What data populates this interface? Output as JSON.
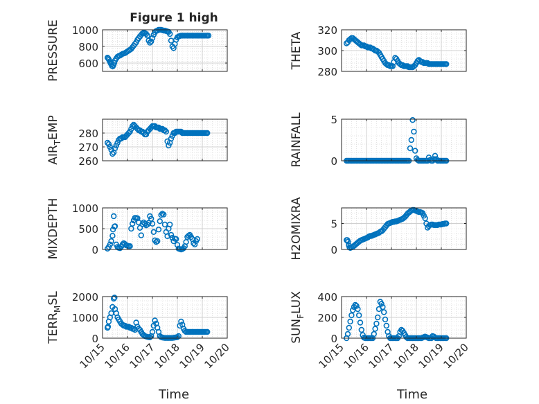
{
  "figure": {
    "title": "Figure 1 high",
    "xlabel": "Time",
    "x_ticks": [
      "10/15",
      "10/16",
      "10/17",
      "10/18",
      "10/19",
      "10/20"
    ],
    "marker_color": "#0072BD"
  },
  "chart_data": [
    {
      "type": "scatter",
      "ylabel": "PRESSURE",
      "ylim": [
        500,
        1000
      ],
      "yticks": [
        600,
        800,
        1000
      ],
      "xlim": [
        "10/15",
        "10/20"
      ],
      "grid": true,
      "x": [
        0.2,
        0.23,
        0.26,
        0.29,
        0.32,
        0.35,
        0.38,
        0.41,
        0.44,
        0.47,
        0.5,
        0.55,
        0.6,
        0.65,
        0.7,
        0.75,
        0.8,
        0.85,
        0.9,
        0.95,
        1.0,
        1.05,
        1.1,
        1.15,
        1.2,
        1.25,
        1.3,
        1.35,
        1.4,
        1.45,
        1.5,
        1.55,
        1.6,
        1.65,
        1.7,
        1.75,
        1.8,
        1.85,
        1.9,
        1.95,
        2.0,
        2.05,
        2.1,
        2.15,
        2.2,
        2.25,
        2.3,
        2.35,
        2.4,
        2.45,
        2.5,
        2.55,
        2.6,
        2.65,
        2.7,
        2.75,
        2.8,
        2.85,
        2.9,
        2.95,
        3.0,
        3.05,
        3.1,
        3.15,
        3.2,
        3.25,
        3.3,
        3.35,
        3.4,
        3.45,
        3.5,
        3.55,
        3.6,
        3.65,
        3.7,
        3.75,
        3.8,
        3.85,
        3.9,
        3.95,
        4.0,
        4.05,
        4.1,
        4.15,
        4.2,
        4.25
      ],
      "y": [
        665,
        655,
        640,
        620,
        600,
        585,
        565,
        560,
        575,
        600,
        630,
        655,
        675,
        685,
        690,
        700,
        710,
        715,
        720,
        730,
        740,
        750,
        760,
        770,
        790,
        810,
        830,
        850,
        880,
        900,
        920,
        940,
        955,
        965,
        960,
        950,
        930,
        870,
        845,
        860,
        900,
        940,
        970,
        985,
        990,
        1000,
        1000,
        1000,
        995,
        990,
        990,
        985,
        980,
        975,
        950,
        870,
        800,
        780,
        830,
        880,
        910,
        920,
        925,
        930,
        930,
        930,
        930,
        930,
        930,
        930,
        930,
        930,
        930,
        930,
        930,
        930,
        930,
        930,
        930,
        930,
        930,
        930,
        930,
        930,
        930,
        930
      ]
    },
    {
      "type": "scatter",
      "ylabel": "THETA",
      "ylim": [
        280,
        320
      ],
      "yticks": [
        280,
        300,
        320
      ],
      "xlim": [
        "10/15",
        "10/20"
      ],
      "grid": true,
      "x": [
        0.2,
        0.25,
        0.3,
        0.35,
        0.4,
        0.45,
        0.5,
        0.55,
        0.6,
        0.65,
        0.7,
        0.75,
        0.8,
        0.85,
        0.9,
        0.95,
        1.0,
        1.05,
        1.1,
        1.15,
        1.2,
        1.25,
        1.3,
        1.35,
        1.4,
        1.45,
        1.5,
        1.55,
        1.6,
        1.65,
        1.7,
        1.75,
        1.8,
        1.85,
        1.9,
        1.95,
        2.0,
        2.05,
        2.1,
        2.15,
        2.2,
        2.25,
        2.3,
        2.35,
        2.4,
        2.45,
        2.5,
        2.55,
        2.6,
        2.65,
        2.7,
        2.75,
        2.8,
        2.85,
        2.9,
        2.95,
        3.0,
        3.05,
        3.1,
        3.15,
        3.2,
        3.25,
        3.3,
        3.35,
        3.4,
        3.45,
        3.5,
        3.55,
        3.6,
        3.65,
        3.7,
        3.75,
        3.8,
        3.85,
        3.9,
        3.95,
        4.0,
        4.05,
        4.1,
        4.15,
        4.2
      ],
      "y": [
        307,
        308,
        310,
        311,
        312,
        312,
        311,
        310,
        309,
        308,
        307,
        306,
        305,
        305,
        305,
        304,
        304,
        303,
        303,
        303,
        302,
        302,
        301,
        300,
        300,
        299,
        298,
        296,
        294,
        292,
        290,
        288,
        287,
        286,
        286,
        285,
        285,
        285,
        289,
        293,
        292,
        290,
        288,
        287,
        286,
        286,
        285,
        285,
        285,
        285,
        284,
        284,
        284,
        284,
        285,
        286,
        288,
        290,
        291,
        290,
        289,
        289,
        288,
        288,
        288,
        288,
        287,
        287,
        287,
        287,
        287,
        287,
        287,
        287,
        287,
        287,
        287,
        287,
        287,
        287,
        287
      ]
    },
    {
      "type": "scatter",
      "ylabel": "AIR_TEMP",
      "ylim": [
        260,
        290
      ],
      "yticks": [
        260,
        270,
        280
      ],
      "xlim": [
        "10/15",
        "10/20"
      ],
      "grid": true,
      "x": [
        0.2,
        0.25,
        0.3,
        0.35,
        0.4,
        0.45,
        0.5,
        0.55,
        0.6,
        0.65,
        0.7,
        0.75,
        0.8,
        0.85,
        0.9,
        0.95,
        1.0,
        1.05,
        1.1,
        1.15,
        1.2,
        1.25,
        1.3,
        1.35,
        1.4,
        1.45,
        1.5,
        1.55,
        1.6,
        1.65,
        1.7,
        1.75,
        1.8,
        1.85,
        1.9,
        1.95,
        2.0,
        2.05,
        2.1,
        2.15,
        2.2,
        2.25,
        2.3,
        2.35,
        2.4,
        2.45,
        2.5,
        2.55,
        2.6,
        2.65,
        2.7,
        2.75,
        2.8,
        2.85,
        2.9,
        2.95,
        3.0,
        3.05,
        3.1,
        3.15,
        3.2,
        3.25,
        3.3,
        3.35,
        3.4,
        3.45,
        3.5,
        3.55,
        3.6,
        3.65,
        3.7,
        3.75,
        3.8,
        3.85,
        3.9,
        3.95,
        4.0,
        4.05,
        4.1,
        4.15,
        4.2
      ],
      "y": [
        273,
        272,
        270,
        268,
        265,
        266,
        269,
        271,
        273,
        275,
        276,
        276,
        277,
        277,
        277,
        278,
        279,
        280,
        281,
        283,
        285,
        286,
        285,
        284,
        283,
        282,
        282,
        281,
        281,
        280,
        279,
        279,
        281,
        282,
        283,
        284,
        285,
        285,
        285,
        284,
        284,
        284,
        283,
        283,
        283,
        282,
        282,
        281,
        274,
        271,
        273,
        276,
        278,
        280,
        280,
        281,
        281,
        281,
        281,
        281,
        280,
        280,
        280,
        280,
        280,
        280,
        280,
        280,
        280,
        280,
        280,
        280,
        280,
        280,
        280,
        280,
        280,
        280,
        280,
        280,
        280
      ]
    },
    {
      "type": "scatter",
      "ylabel": "RAINFALL",
      "ylim": [
        0,
        5
      ],
      "yticks": [
        0,
        5
      ],
      "xlim": [
        "10/15",
        "10/20"
      ],
      "grid": true,
      "x": [
        0.2,
        0.25,
        0.3,
        0.35,
        0.4,
        0.45,
        0.5,
        0.55,
        0.6,
        0.65,
        0.7,
        0.75,
        0.8,
        0.85,
        0.9,
        0.95,
        1.0,
        1.05,
        1.1,
        1.15,
        1.2,
        1.25,
        1.3,
        1.35,
        1.4,
        1.45,
        1.5,
        1.55,
        1.6,
        1.65,
        1.7,
        1.75,
        1.8,
        1.85,
        1.9,
        1.95,
        2.0,
        2.05,
        2.1,
        2.15,
        2.2,
        2.25,
        2.3,
        2.35,
        2.4,
        2.45,
        2.5,
        2.55,
        2.6,
        2.65,
        2.7,
        2.75,
        2.8,
        2.85,
        2.9,
        2.95,
        3.0,
        3.05,
        3.1,
        3.15,
        3.2,
        3.25,
        3.3,
        3.35,
        3.4,
        3.45,
        3.5,
        3.55,
        3.6,
        3.65,
        3.7,
        3.75,
        3.8,
        3.85,
        3.9,
        3.95,
        4.0,
        4.05,
        4.1,
        4.15,
        4.2
      ],
      "y": [
        0,
        0,
        0,
        0,
        0,
        0,
        0,
        0,
        0,
        0,
        0,
        0,
        0,
        0,
        0,
        0,
        0,
        0,
        0,
        0,
        0,
        0,
        0,
        0,
        0,
        0,
        0,
        0,
        0,
        0,
        0,
        0,
        0,
        0,
        0,
        0,
        0,
        0,
        0,
        0,
        0,
        0,
        0,
        0,
        0,
        0,
        0,
        0,
        0,
        0,
        0,
        1.5,
        2.5,
        4.9,
        3.5,
        1.2,
        0.3,
        0.1,
        0,
        0,
        0,
        0,
        0,
        0,
        0,
        0,
        0.4,
        0.1,
        0,
        0,
        0.2,
        0.6,
        0.2,
        0,
        0,
        0,
        0,
        0,
        0,
        0,
        0
      ]
    },
    {
      "type": "scatter",
      "ylabel": "MIXDEPTH",
      "ylim": [
        0,
        1000
      ],
      "yticks": [
        0,
        500,
        1000
      ],
      "xlim": [
        "10/15",
        "10/20"
      ],
      "grid": true,
      "x": [
        0.2,
        0.25,
        0.3,
        0.35,
        0.4,
        0.42,
        0.45,
        0.48,
        0.5,
        0.55,
        0.6,
        0.65,
        0.7,
        0.75,
        0.8,
        0.85,
        0.9,
        0.95,
        1.0,
        1.05,
        1.1,
        1.15,
        1.2,
        1.25,
        1.3,
        1.35,
        1.4,
        1.45,
        1.5,
        1.55,
        1.6,
        1.65,
        1.7,
        1.75,
        1.8,
        1.85,
        1.9,
        1.95,
        2.0,
        2.05,
        2.1,
        2.15,
        2.2,
        2.25,
        2.3,
        2.35,
        2.4,
        2.45,
        2.5,
        2.55,
        2.6,
        2.65,
        2.7,
        2.75,
        2.8,
        2.85,
        2.9,
        2.95,
        3.0,
        3.05,
        3.1,
        3.15,
        3.2,
        3.25,
        3.3,
        3.35,
        3.4,
        3.45,
        3.5,
        3.55,
        3.6,
        3.65,
        3.7,
        3.75,
        3.8
      ],
      "y": [
        20,
        60,
        120,
        200,
        330,
        480,
        800,
        550,
        560,
        120,
        60,
        40,
        30,
        70,
        120,
        150,
        130,
        100,
        90,
        80,
        80,
        500,
        620,
        700,
        760,
        760,
        750,
        650,
        520,
        340,
        610,
        650,
        620,
        580,
        600,
        640,
        800,
        740,
        620,
        420,
        220,
        180,
        200,
        480,
        680,
        830,
        860,
        840,
        600,
        420,
        320,
        500,
        600,
        350,
        280,
        200,
        260,
        250,
        110,
        20,
        10,
        0,
        10,
        30,
        80,
        180,
        300,
        330,
        350,
        300,
        250,
        150,
        120,
        200,
        250
      ]
    },
    {
      "type": "scatter",
      "ylabel": "H2OMIXRA",
      "ylim": [
        0,
        8
      ],
      "yticks": [
        0,
        5
      ],
      "xlim": [
        "10/15",
        "10/20"
      ],
      "grid": true,
      "x": [
        0.2,
        0.23,
        0.26,
        0.29,
        0.32,
        0.35,
        0.4,
        0.45,
        0.5,
        0.55,
        0.6,
        0.65,
        0.7,
        0.75,
        0.8,
        0.85,
        0.9,
        0.95,
        1.0,
        1.05,
        1.1,
        1.15,
        1.2,
        1.25,
        1.3,
        1.35,
        1.4,
        1.45,
        1.5,
        1.55,
        1.6,
        1.65,
        1.7,
        1.75,
        1.8,
        1.85,
        1.9,
        1.95,
        2.0,
        2.05,
        2.1,
        2.15,
        2.2,
        2.25,
        2.3,
        2.35,
        2.4,
        2.45,
        2.5,
        2.55,
        2.6,
        2.65,
        2.7,
        2.75,
        2.8,
        2.85,
        2.9,
        2.95,
        3.0,
        3.05,
        3.1,
        3.15,
        3.2,
        3.25,
        3.3,
        3.35,
        3.4,
        3.45,
        3.5,
        3.55,
        3.6,
        3.65,
        3.7,
        3.75,
        3.8,
        3.85,
        3.9,
        3.95,
        4.0,
        4.05,
        4.1,
        4.15,
        4.2
      ],
      "y": [
        1.8,
        1.8,
        1.5,
        0.8,
        0.4,
        0.3,
        0.4,
        0.5,
        0.7,
        0.9,
        1.1,
        1.3,
        1.5,
        1.7,
        1.8,
        1.9,
        2.0,
        2.1,
        2.2,
        2.3,
        2.5,
        2.6,
        2.6,
        2.7,
        2.8,
        2.9,
        3.0,
        3.1,
        3.2,
        3.4,
        3.5,
        3.7,
        4.0,
        4.3,
        4.6,
        4.9,
        5.0,
        5.1,
        5.2,
        5.3,
        5.3,
        5.4,
        5.4,
        5.5,
        5.6,
        5.7,
        5.8,
        5.9,
        6.1,
        6.3,
        6.6,
        6.9,
        7.1,
        7.3,
        7.5,
        7.6,
        7.6,
        7.5,
        7.4,
        7.3,
        7.2,
        7.2,
        7.1,
        7.0,
        6.5,
        6.0,
        5.0,
        4.2,
        4.5,
        4.7,
        4.8,
        4.8,
        4.7,
        4.7,
        4.7,
        4.7,
        4.8,
        4.8,
        4.8,
        4.9,
        4.9,
        5.0,
        5.0
      ]
    },
    {
      "type": "scatter",
      "ylabel": "TERR_MSL",
      "ylim": [
        0,
        2000
      ],
      "yticks": [
        0,
        1000,
        2000
      ],
      "xlim": [
        "10/15",
        "10/20"
      ],
      "grid": true,
      "x": [
        0.2,
        0.22,
        0.25,
        0.3,
        0.35,
        0.4,
        0.45,
        0.48,
        0.5,
        0.55,
        0.6,
        0.65,
        0.7,
        0.75,
        0.8,
        0.85,
        0.9,
        0.95,
        1.0,
        1.05,
        1.1,
        1.15,
        1.2,
        1.25,
        1.3,
        1.35,
        1.4,
        1.45,
        1.5,
        1.55,
        1.6,
        1.65,
        1.7,
        1.75,
        1.8,
        1.85,
        1.9,
        1.95,
        2.0,
        2.05,
        2.1,
        2.15,
        2.2,
        2.25,
        2.3,
        2.35,
        2.4,
        2.45,
        2.5,
        2.55,
        2.6,
        2.65,
        2.7,
        2.75,
        2.8,
        2.85,
        2.9,
        2.95,
        3.0,
        3.05,
        3.1,
        3.15,
        3.2,
        3.25,
        3.3,
        3.35,
        3.4,
        3.45,
        3.5,
        3.55,
        3.6,
        3.65,
        3.7,
        3.75,
        3.8,
        3.85,
        3.9,
        3.95,
        4.0,
        4.05,
        4.1,
        4.15,
        4.2
      ],
      "y": [
        500,
        550,
        800,
        1000,
        1200,
        1500,
        1900,
        1950,
        1400,
        1200,
        1000,
        900,
        800,
        700,
        650,
        600,
        600,
        550,
        550,
        550,
        500,
        500,
        450,
        450,
        400,
        750,
        550,
        450,
        400,
        300,
        200,
        150,
        100,
        80,
        60,
        50,
        40,
        100,
        300,
        600,
        850,
        700,
        500,
        300,
        100,
        50,
        30,
        20,
        10,
        10,
        10,
        10,
        10,
        10,
        10,
        20,
        30,
        40,
        50,
        100,
        600,
        800,
        650,
        450,
        350,
        300,
        300,
        300,
        300,
        300,
        300,
        300,
        300,
        300,
        300,
        300,
        300,
        300,
        300,
        300,
        300,
        300,
        300
      ]
    },
    {
      "type": "scatter",
      "ylabel": "SUN_FLUX",
      "ylim": [
        0,
        400
      ],
      "yticks": [
        0,
        200,
        400
      ],
      "xlim": [
        "10/15",
        "10/20"
      ],
      "grid": true,
      "x": [
        0.2,
        0.25,
        0.3,
        0.35,
        0.4,
        0.45,
        0.5,
        0.55,
        0.6,
        0.65,
        0.7,
        0.75,
        0.8,
        0.85,
        0.9,
        0.95,
        1.0,
        1.05,
        1.1,
        1.15,
        1.2,
        1.25,
        1.3,
        1.35,
        1.4,
        1.45,
        1.5,
        1.55,
        1.6,
        1.65,
        1.7,
        1.75,
        1.8,
        1.85,
        1.9,
        1.95,
        2.0,
        2.05,
        2.1,
        2.15,
        2.2,
        2.25,
        2.3,
        2.35,
        2.4,
        2.45,
        2.5,
        2.55,
        2.6,
        2.65,
        2.7,
        2.75,
        2.8,
        2.85,
        2.9,
        2.95,
        3.0,
        3.05,
        3.1,
        3.15,
        3.2,
        3.25,
        3.3,
        3.35,
        3.4,
        3.45,
        3.5,
        3.55,
        3.6,
        3.65,
        3.7,
        3.75,
        3.8,
        3.85,
        3.9,
        3.95,
        4.0,
        4.05,
        4.1,
        4.15,
        4.2
      ],
      "y": [
        0,
        40,
        100,
        160,
        220,
        270,
        300,
        320,
        310,
        280,
        220,
        150,
        80,
        30,
        5,
        0,
        0,
        0,
        0,
        0,
        0,
        0,
        40,
        90,
        140,
        200,
        280,
        350,
        330,
        300,
        250,
        180,
        120,
        60,
        20,
        0,
        0,
        0,
        0,
        0,
        0,
        0,
        20,
        60,
        80,
        70,
        50,
        30,
        10,
        0,
        0,
        0,
        0,
        0,
        0,
        0,
        0,
        0,
        0,
        0,
        0,
        5,
        10,
        15,
        10,
        5,
        0,
        0,
        0,
        20,
        15,
        5,
        0,
        0,
        0,
        0,
        0,
        0,
        0,
        0,
        0
      ]
    }
  ]
}
